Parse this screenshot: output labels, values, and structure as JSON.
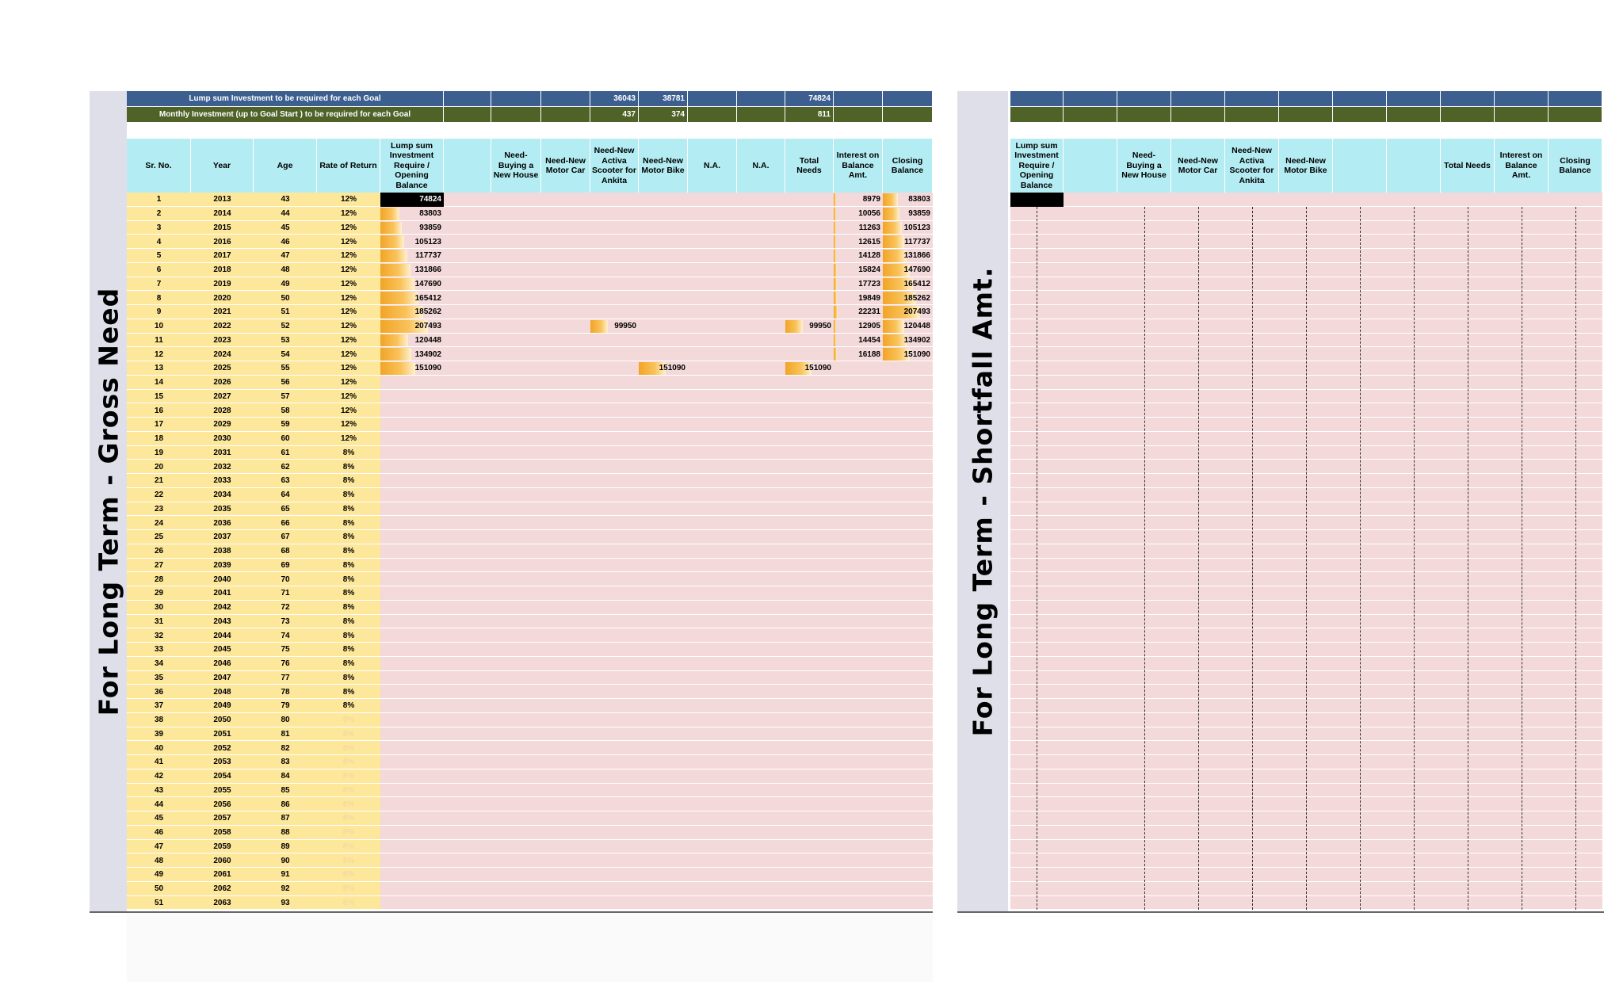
{
  "left": {
    "title": "For Long Term - Gross Need",
    "lump_label": "Lump sum Investment to be required for each Goal",
    "monthly_label": "Monthly Investment (up to Goal Start ) to be required for each Goal",
    "lump_values": [
      "",
      "",
      "",
      "36043",
      "38781",
      "",
      "",
      "74824",
      "",
      ""
    ],
    "monthly_values": [
      "",
      "",
      "",
      "437",
      "374",
      "",
      "",
      "811",
      "",
      ""
    ],
    "headers": [
      "Sr. No.",
      "Year",
      "Age",
      "Rate of Return",
      "Lump sum Investment Require / Opening Balance",
      "",
      "Need-Buying a New House",
      "Need-New Motor Car",
      "Need-New Activa Scooter for Ankita",
      "Need-New Motor Bike",
      "N.A.",
      "N.A.",
      "Total Needs",
      "Interest on Balance Amt.",
      "Closing Balance"
    ],
    "rows": [
      {
        "sr": "1",
        "year": "2013",
        "age": "43",
        "rate": "12%",
        "opening": "74824",
        "scooter": "",
        "bike": "",
        "total": "",
        "interest": "8979",
        "closing": "83803"
      },
      {
        "sr": "2",
        "year": "2014",
        "age": "44",
        "rate": "12%",
        "opening": "83803",
        "scooter": "",
        "bike": "",
        "total": "",
        "interest": "10056",
        "closing": "93859"
      },
      {
        "sr": "3",
        "year": "2015",
        "age": "45",
        "rate": "12%",
        "opening": "93859",
        "scooter": "",
        "bike": "",
        "total": "",
        "interest": "11263",
        "closing": "105123"
      },
      {
        "sr": "4",
        "year": "2016",
        "age": "46",
        "rate": "12%",
        "opening": "105123",
        "scooter": "",
        "bike": "",
        "total": "",
        "interest": "12615",
        "closing": "117737"
      },
      {
        "sr": "5",
        "year": "2017",
        "age": "47",
        "rate": "12%",
        "opening": "117737",
        "scooter": "",
        "bike": "",
        "total": "",
        "interest": "14128",
        "closing": "131866"
      },
      {
        "sr": "6",
        "year": "2018",
        "age": "48",
        "rate": "12%",
        "opening": "131866",
        "scooter": "",
        "bike": "",
        "total": "",
        "interest": "15824",
        "closing": "147690"
      },
      {
        "sr": "7",
        "year": "2019",
        "age": "49",
        "rate": "12%",
        "opening": "147690",
        "scooter": "",
        "bike": "",
        "total": "",
        "interest": "17723",
        "closing": "165412"
      },
      {
        "sr": "8",
        "year": "2020",
        "age": "50",
        "rate": "12%",
        "opening": "165412",
        "scooter": "",
        "bike": "",
        "total": "",
        "interest": "19849",
        "closing": "185262"
      },
      {
        "sr": "9",
        "year": "2021",
        "age": "51",
        "rate": "12%",
        "opening": "185262",
        "scooter": "",
        "bike": "",
        "total": "",
        "interest": "22231",
        "closing": "207493"
      },
      {
        "sr": "10",
        "year": "2022",
        "age": "52",
        "rate": "12%",
        "opening": "207493",
        "scooter": "99950",
        "bike": "",
        "total": "99950",
        "interest": "12905",
        "closing": "120448"
      },
      {
        "sr": "11",
        "year": "2023",
        "age": "53",
        "rate": "12%",
        "opening": "120448",
        "scooter": "",
        "bike": "",
        "total": "",
        "interest": "14454",
        "closing": "134902"
      },
      {
        "sr": "12",
        "year": "2024",
        "age": "54",
        "rate": "12%",
        "opening": "134902",
        "scooter": "",
        "bike": "",
        "total": "",
        "interest": "16188",
        "closing": "151090"
      },
      {
        "sr": "13",
        "year": "2025",
        "age": "55",
        "rate": "12%",
        "opening": "151090",
        "scooter": "",
        "bike": "151090",
        "total": "151090",
        "interest": "",
        "closing": ""
      },
      {
        "sr": "14",
        "year": "2026",
        "age": "56",
        "rate": "12%"
      },
      {
        "sr": "15",
        "year": "2027",
        "age": "57",
        "rate": "12%"
      },
      {
        "sr": "16",
        "year": "2028",
        "age": "58",
        "rate": "12%"
      },
      {
        "sr": "17",
        "year": "2029",
        "age": "59",
        "rate": "12%"
      },
      {
        "sr": "18",
        "year": "2030",
        "age": "60",
        "rate": "12%"
      },
      {
        "sr": "19",
        "year": "2031",
        "age": "61",
        "rate": "8%"
      },
      {
        "sr": "20",
        "year": "2032",
        "age": "62",
        "rate": "8%"
      },
      {
        "sr": "21",
        "year": "2033",
        "age": "63",
        "rate": "8%"
      },
      {
        "sr": "22",
        "year": "2034",
        "age": "64",
        "rate": "8%"
      },
      {
        "sr": "23",
        "year": "2035",
        "age": "65",
        "rate": "8%"
      },
      {
        "sr": "24",
        "year": "2036",
        "age": "66",
        "rate": "8%"
      },
      {
        "sr": "25",
        "year": "2037",
        "age": "67",
        "rate": "8%"
      },
      {
        "sr": "26",
        "year": "2038",
        "age": "68",
        "rate": "8%"
      },
      {
        "sr": "27",
        "year": "2039",
        "age": "69",
        "rate": "8%"
      },
      {
        "sr": "28",
        "year": "2040",
        "age": "70",
        "rate": "8%"
      },
      {
        "sr": "29",
        "year": "2041",
        "age": "71",
        "rate": "8%"
      },
      {
        "sr": "30",
        "year": "2042",
        "age": "72",
        "rate": "8%"
      },
      {
        "sr": "31",
        "year": "2043",
        "age": "73",
        "rate": "8%"
      },
      {
        "sr": "32",
        "year": "2044",
        "age": "74",
        "rate": "8%"
      },
      {
        "sr": "33",
        "year": "2045",
        "age": "75",
        "rate": "8%"
      },
      {
        "sr": "34",
        "year": "2046",
        "age": "76",
        "rate": "8%"
      },
      {
        "sr": "35",
        "year": "2047",
        "age": "77",
        "rate": "8%"
      },
      {
        "sr": "36",
        "year": "2048",
        "age": "78",
        "rate": "8%"
      },
      {
        "sr": "37",
        "year": "2049",
        "age": "79",
        "rate": "8%"
      },
      {
        "sr": "38",
        "year": "2050",
        "age": "80",
        "rate": "8%"
      },
      {
        "sr": "39",
        "year": "2051",
        "age": "81",
        "rate": "8%"
      },
      {
        "sr": "40",
        "year": "2052",
        "age": "82",
        "rate": "8%"
      },
      {
        "sr": "41",
        "year": "2053",
        "age": "83",
        "rate": "8%"
      },
      {
        "sr": "42",
        "year": "2054",
        "age": "84",
        "rate": "8%"
      },
      {
        "sr": "43",
        "year": "2055",
        "age": "85",
        "rate": "8%"
      },
      {
        "sr": "44",
        "year": "2056",
        "age": "86",
        "rate": "8%"
      },
      {
        "sr": "45",
        "year": "2057",
        "age": "87",
        "rate": "8%"
      },
      {
        "sr": "46",
        "year": "2058",
        "age": "88",
        "rate": "8%"
      },
      {
        "sr": "47",
        "year": "2059",
        "age": "89",
        "rate": "8%"
      },
      {
        "sr": "48",
        "year": "2060",
        "age": "90",
        "rate": "8%"
      },
      {
        "sr": "49",
        "year": "2061",
        "age": "91",
        "rate": "8%"
      },
      {
        "sr": "50",
        "year": "2062",
        "age": "92",
        "rate": "8%"
      },
      {
        "sr": "51",
        "year": "2063",
        "age": "93",
        "rate": "8%"
      }
    ],
    "bar_max": 207493
  },
  "right": {
    "title": "For Long Term - Shortfall Amt.",
    "headers": [
      "Lump sum Investment Require / Opening Balance",
      "",
      "Need-Buying a New House",
      "Need-New Motor Car",
      "Need-New Activa Scooter for Ankita",
      "Need-New Motor Bike",
      "",
      "",
      "Total Needs",
      "Interest on Balance Amt.",
      "Closing Balance"
    ]
  },
  "colors": {
    "top_bar_blue": "#3c5f8f",
    "top_bar_green": "#4f6228",
    "header_cyan": "#b3ecf2",
    "yellow_cols": "#fde79a",
    "pink_body": "#f4d9da",
    "black_cell": "#000000"
  }
}
